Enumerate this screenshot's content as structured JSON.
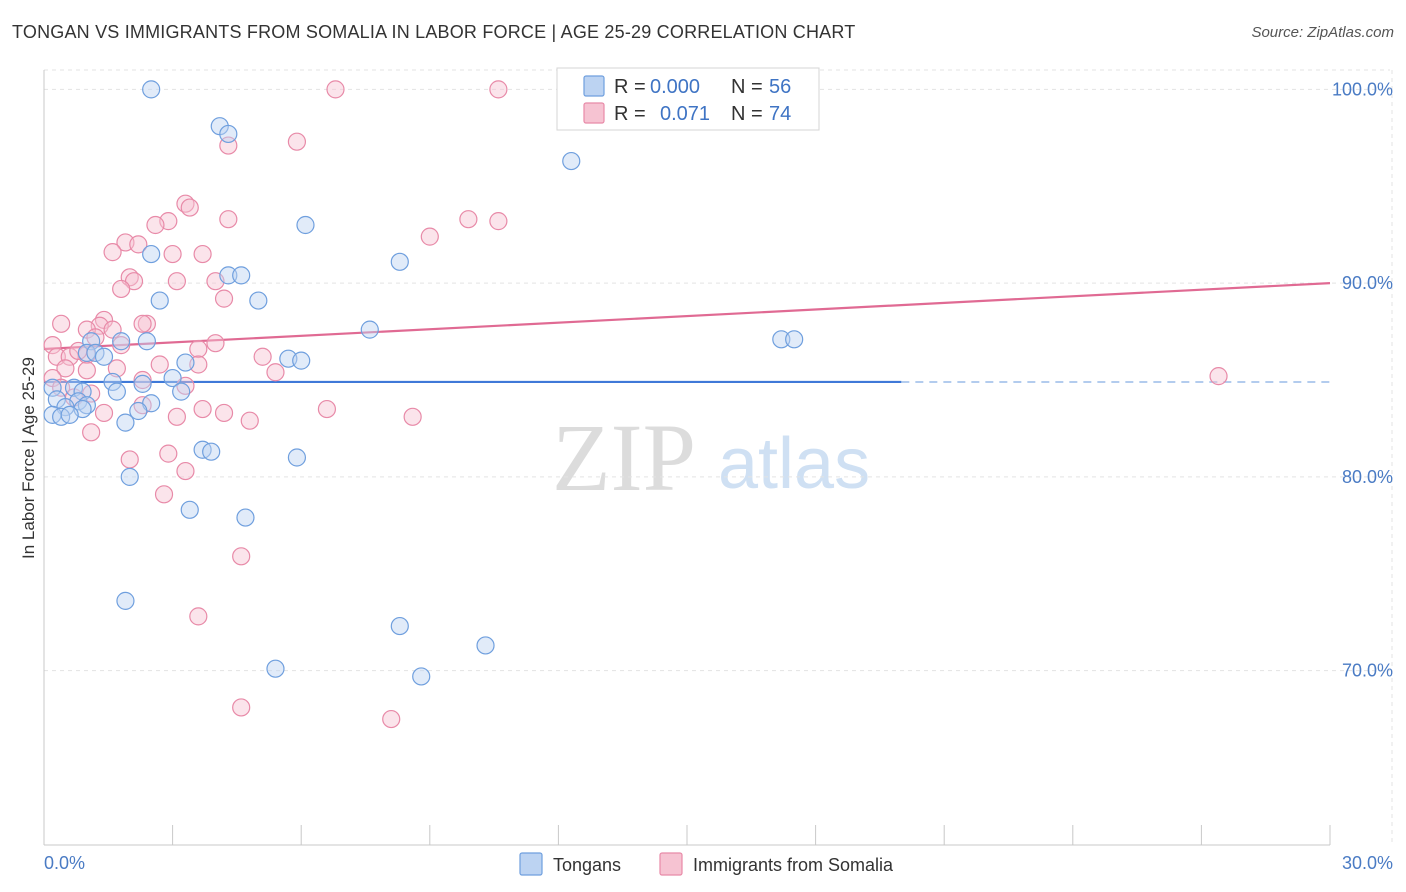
{
  "header": {
    "title": "TONGAN VS IMMIGRANTS FROM SOMALIA IN LABOR FORCE | AGE 25-29 CORRELATION CHART",
    "source": "Source: ZipAtlas.com"
  },
  "watermark": {
    "zip": "ZIP",
    "atlas": "atlas"
  },
  "colors": {
    "blue_fill": "#bcd3f2",
    "blue_stroke": "#6f9fde",
    "blue_line": "#3f79d8",
    "pink_fill": "#f6c3d2",
    "pink_stroke": "#e88aa8",
    "pink_line": "#e06a93",
    "grid": "#e3e3e3",
    "axis_label": "#4a7bc4"
  },
  "stats_legend": {
    "rows": [
      {
        "r_label": "R =",
        "r_value": "0.000",
        "n_label": "N =",
        "n_value": "56"
      },
      {
        "r_label": "R =",
        "r_value": "0.071",
        "n_label": "N =",
        "n_value": "74"
      }
    ]
  },
  "chart_data": {
    "type": "scatter",
    "title": "TONGAN VS IMMIGRANTS FROM SOMALIA IN LABOR FORCE | AGE 25-29 CORRELATION CHART",
    "xlabel": "",
    "ylabel": "In Labor Force | Age 25-29",
    "xlim": [
      0,
      30
    ],
    "ylim": [
      61,
      101
    ],
    "x_tick_labels": [
      "0.0%",
      "30.0%"
    ],
    "y_ticks": [
      70,
      80,
      90,
      100
    ],
    "y_tick_labels": [
      "70.0%",
      "80.0%",
      "90.0%",
      "100.0%"
    ],
    "legend_position": "bottom",
    "series": [
      {
        "name": "Tongans",
        "color": "blue",
        "trend": {
          "x0": 0,
          "y0": 84.9,
          "x1": 20.0,
          "y1": 84.9,
          "dashed_to": 30
        },
        "points": [
          [
            2.5,
            100
          ],
          [
            4.1,
            98.1
          ],
          [
            4.3,
            97.7
          ],
          [
            12.3,
            96.3
          ],
          [
            6.1,
            93
          ],
          [
            2.5,
            91.5
          ],
          [
            8.3,
            91.1
          ],
          [
            4.3,
            90.4
          ],
          [
            4.6,
            90.4
          ],
          [
            2.7,
            89.1
          ],
          [
            5.0,
            89.1
          ],
          [
            7.6,
            87.6
          ],
          [
            17.2,
            87.1
          ],
          [
            17.5,
            87.1
          ],
          [
            1.1,
            87.0
          ],
          [
            1.8,
            87.0
          ],
          [
            2.4,
            87.0
          ],
          [
            1.0,
            86.4
          ],
          [
            1.2,
            86.4
          ],
          [
            1.4,
            86.2
          ],
          [
            5.7,
            86.1
          ],
          [
            6.0,
            86.0
          ],
          [
            3.3,
            85.9
          ],
          [
            3.0,
            85.1
          ],
          [
            1.6,
            84.9
          ],
          [
            2.3,
            84.8
          ],
          [
            0.2,
            84.6
          ],
          [
            0.7,
            84.6
          ],
          [
            0.9,
            84.4
          ],
          [
            3.2,
            84.4
          ],
          [
            1.7,
            84.4
          ],
          [
            0.3,
            84.0
          ],
          [
            0.8,
            83.9
          ],
          [
            1.0,
            83.7
          ],
          [
            2.5,
            83.8
          ],
          [
            0.5,
            83.6
          ],
          [
            0.9,
            83.5
          ],
          [
            2.2,
            83.4
          ],
          [
            0.2,
            83.2
          ],
          [
            0.4,
            83.1
          ],
          [
            0.6,
            83.2
          ],
          [
            1.9,
            82.8
          ],
          [
            3.7,
            81.4
          ],
          [
            3.9,
            81.3
          ],
          [
            5.9,
            81.0
          ],
          [
            2.0,
            80.0
          ],
          [
            3.4,
            78.3
          ],
          [
            4.7,
            77.9
          ],
          [
            1.9,
            73.6
          ],
          [
            8.3,
            72.3
          ],
          [
            10.3,
            71.3
          ],
          [
            5.4,
            70.1
          ],
          [
            8.8,
            69.7
          ]
        ]
      },
      {
        "name": "Immigrants from Somalia",
        "color": "pink",
        "trend": {
          "x0": 0,
          "y0": 86.6,
          "x1": 30,
          "y1": 90.0
        },
        "points": [
          [
            6.8,
            100
          ],
          [
            10.6,
            100
          ],
          [
            5.9,
            97.3
          ],
          [
            4.3,
            97.1
          ],
          [
            3.3,
            94.1
          ],
          [
            3.4,
            93.9
          ],
          [
            4.3,
            93.3
          ],
          [
            2.9,
            93.2
          ],
          [
            2.6,
            93.0
          ],
          [
            9.9,
            93.3
          ],
          [
            10.6,
            93.2
          ],
          [
            9.0,
            92.4
          ],
          [
            1.9,
            92.1
          ],
          [
            2.2,
            92.0
          ],
          [
            1.6,
            91.6
          ],
          [
            3.0,
            91.5
          ],
          [
            3.7,
            91.5
          ],
          [
            2.0,
            90.3
          ],
          [
            2.1,
            90.1
          ],
          [
            3.1,
            90.1
          ],
          [
            4.0,
            90.1
          ],
          [
            1.8,
            89.7
          ],
          [
            4.2,
            89.2
          ],
          [
            1.4,
            88.1
          ],
          [
            0.4,
            87.9
          ],
          [
            1.3,
            87.8
          ],
          [
            2.4,
            87.9
          ],
          [
            2.3,
            87.9
          ],
          [
            1.0,
            87.6
          ],
          [
            1.6,
            87.6
          ],
          [
            1.2,
            87.2
          ],
          [
            0.2,
            86.8
          ],
          [
            1.8,
            86.8
          ],
          [
            4.0,
            86.9
          ],
          [
            3.6,
            86.6
          ],
          [
            0.3,
            86.2
          ],
          [
            0.6,
            86.2
          ],
          [
            1.0,
            86.3
          ],
          [
            0.8,
            86.5
          ],
          [
            5.1,
            86.2
          ],
          [
            2.7,
            85.8
          ],
          [
            3.6,
            85.8
          ],
          [
            1.7,
            85.6
          ],
          [
            0.5,
            85.6
          ],
          [
            1.0,
            85.5
          ],
          [
            5.4,
            85.4
          ],
          [
            0.2,
            85.1
          ],
          [
            2.3,
            85.0
          ],
          [
            0.4,
            84.6
          ],
          [
            3.3,
            84.7
          ],
          [
            1.1,
            84.3
          ],
          [
            0.7,
            84.1
          ],
          [
            2.3,
            83.7
          ],
          [
            3.7,
            83.5
          ],
          [
            4.2,
            83.3
          ],
          [
            6.6,
            83.5
          ],
          [
            1.4,
            83.3
          ],
          [
            3.1,
            83.1
          ],
          [
            8.6,
            83.1
          ],
          [
            4.8,
            82.9
          ],
          [
            1.1,
            82.3
          ],
          [
            2.9,
            81.2
          ],
          [
            2.0,
            80.9
          ],
          [
            3.3,
            80.3
          ],
          [
            2.8,
            79.1
          ],
          [
            4.6,
            75.9
          ],
          [
            3.6,
            72.8
          ],
          [
            4.6,
            68.1
          ],
          [
            8.1,
            67.5
          ],
          [
            27.4,
            85.2
          ]
        ]
      }
    ]
  }
}
